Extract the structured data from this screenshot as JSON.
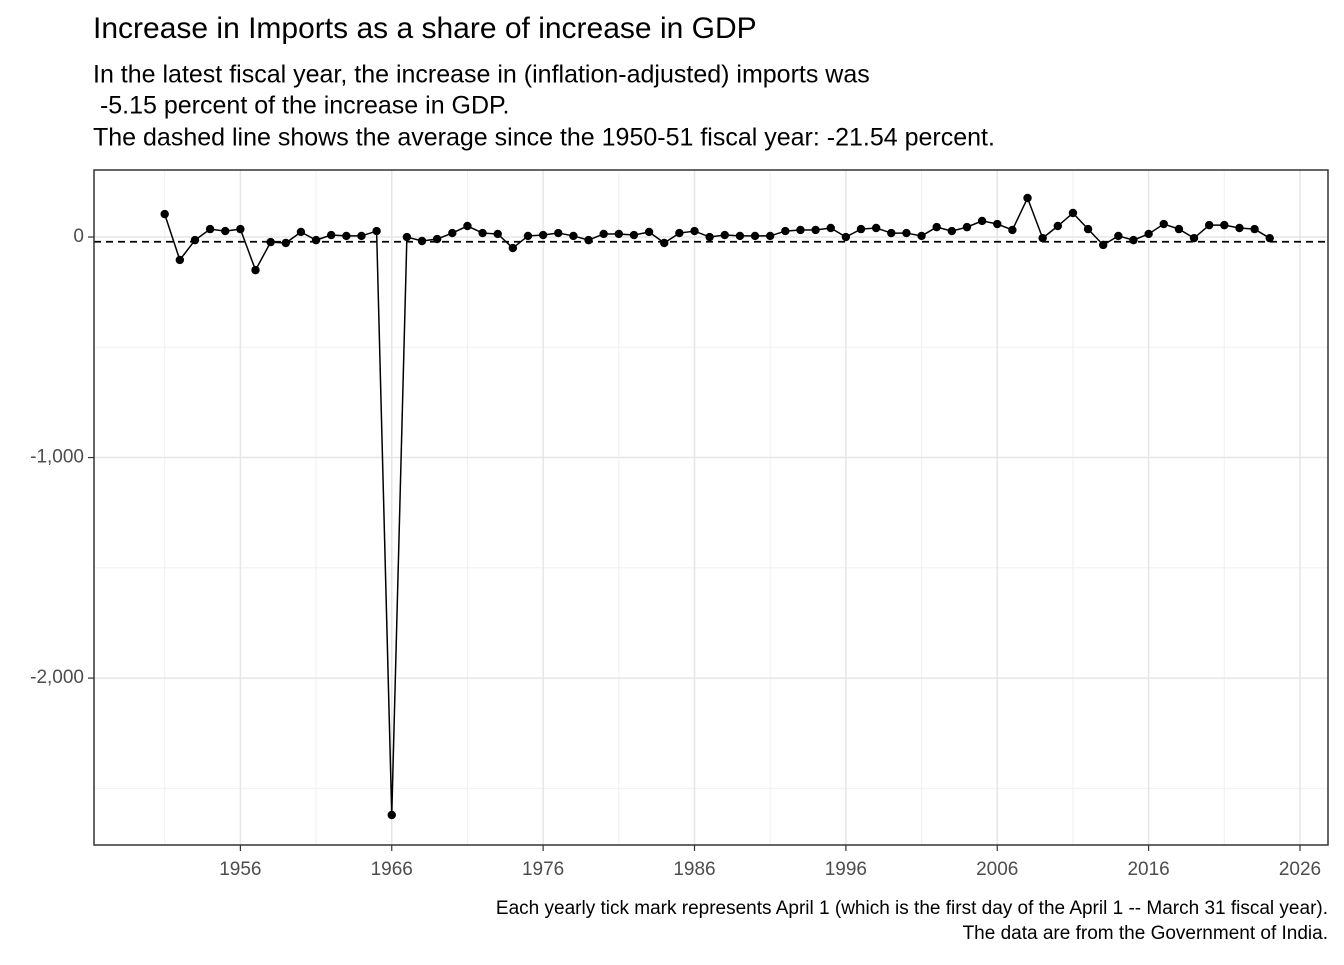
{
  "chart_data": {
    "type": "line",
    "title": "Increase in Imports as a share of increase in GDP",
    "subtitle": [
      "In the latest fiscal year, the increase in (inflation-adjusted) imports was",
      " -5.15 percent of the increase in GDP.",
      "The dashed line shows the average since the 1950-51 fiscal year: -21.54 percent."
    ],
    "caption": [
      "Each yearly tick mark represents April 1 (which is the first day of the April 1 -- March 31 fiscal year).",
      "The data are from the Government of India."
    ],
    "x": [
      1951,
      1952,
      1953,
      1954,
      1955,
      1956,
      1957,
      1958,
      1959,
      1960,
      1961,
      1962,
      1963,
      1964,
      1965,
      1966,
      1967,
      1968,
      1969,
      1970,
      1971,
      1972,
      1973,
      1974,
      1975,
      1976,
      1977,
      1978,
      1979,
      1980,
      1981,
      1982,
      1983,
      1984,
      1985,
      1986,
      1987,
      1988,
      1989,
      1990,
      1991,
      1992,
      1993,
      1994,
      1995,
      1996,
      1997,
      1998,
      1999,
      2000,
      2001,
      2002,
      2003,
      2004,
      2005,
      2006,
      2007,
      2008,
      2009,
      2010,
      2011,
      2012,
      2013,
      2014,
      2015,
      2016,
      2017,
      2018,
      2019,
      2020,
      2021,
      2022,
      2023,
      2024
    ],
    "series": [
      {
        "color": "#000000",
        "values": [
          104,
          -104,
          -14,
          36,
          27,
          36,
          -150,
          -23,
          -27,
          23,
          -14,
          9,
          5,
          5,
          27,
          -2621,
          0,
          -18,
          -9,
          18,
          50,
          18,
          14,
          -50,
          5,
          9,
          18,
          5,
          -14,
          14,
          14,
          9,
          23,
          -27,
          18,
          27,
          0,
          9,
          5,
          5,
          5,
          27,
          32,
          32,
          41,
          0,
          36,
          41,
          18,
          18,
          5,
          45,
          27,
          45,
          73,
          59,
          32,
          177,
          -5,
          50,
          109,
          36,
          -36,
          5,
          -14,
          14,
          59,
          36,
          -5,
          54,
          54,
          41,
          36,
          -5.15
        ]
      }
    ],
    "hline": -21.54,
    "xlim": [
      1946.33,
      2027.85
    ],
    "ylim": [
      -2757,
      304
    ],
    "xticks": [
      1956,
      1966,
      1976,
      1986,
      1996,
      2006,
      2016,
      2026
    ],
    "xminor": [
      1951,
      1961,
      1971,
      1981,
      1991,
      2001,
      2011,
      2021
    ],
    "yticks": [
      {
        "value": -2000,
        "label": "-2,000"
      },
      {
        "value": -1000,
        "label": "-1,000"
      },
      0
    ],
    "yminor": [
      -2500,
      -1500,
      -500
    ],
    "grid": true
  }
}
